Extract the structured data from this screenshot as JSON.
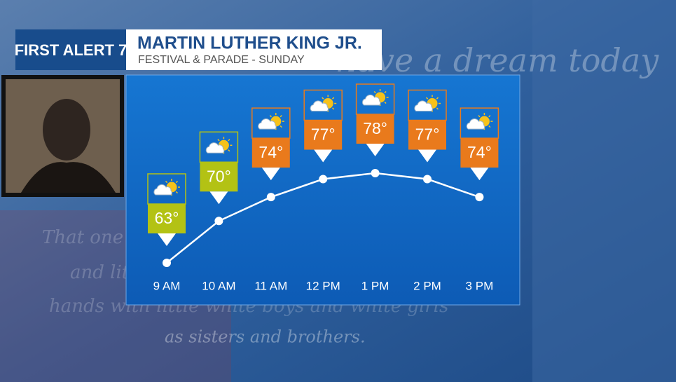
{
  "header": {
    "logo": "FIRST ALERT 7",
    "title": "MARTIN LUTHER KING JR.",
    "subtitle": "FESTIVAL & PARADE - SUNDAY"
  },
  "background_quote": [
    "have a dream today",
    "That one day little black boys",
    "and little black girls will be able to join",
    "hands with little white boys and white girls",
    "as sisters and brothers."
  ],
  "chart_data": {
    "type": "line",
    "categories": [
      "9 AM",
      "10 AM",
      "11 AM",
      "12 PM",
      "1 PM",
      "2 PM",
      "3 PM"
    ],
    "values": [
      63,
      70,
      74,
      77,
      78,
      77,
      74
    ],
    "value_labels": [
      "63°",
      "70°",
      "74°",
      "77°",
      "78°",
      "77°",
      "74°"
    ],
    "colors": [
      "#b3c214",
      "#b3c214",
      "#e97a1c",
      "#e97a1c",
      "#e97a1c",
      "#e97a1c",
      "#e97a1c"
    ],
    "color": "#ffffff"
  }
}
